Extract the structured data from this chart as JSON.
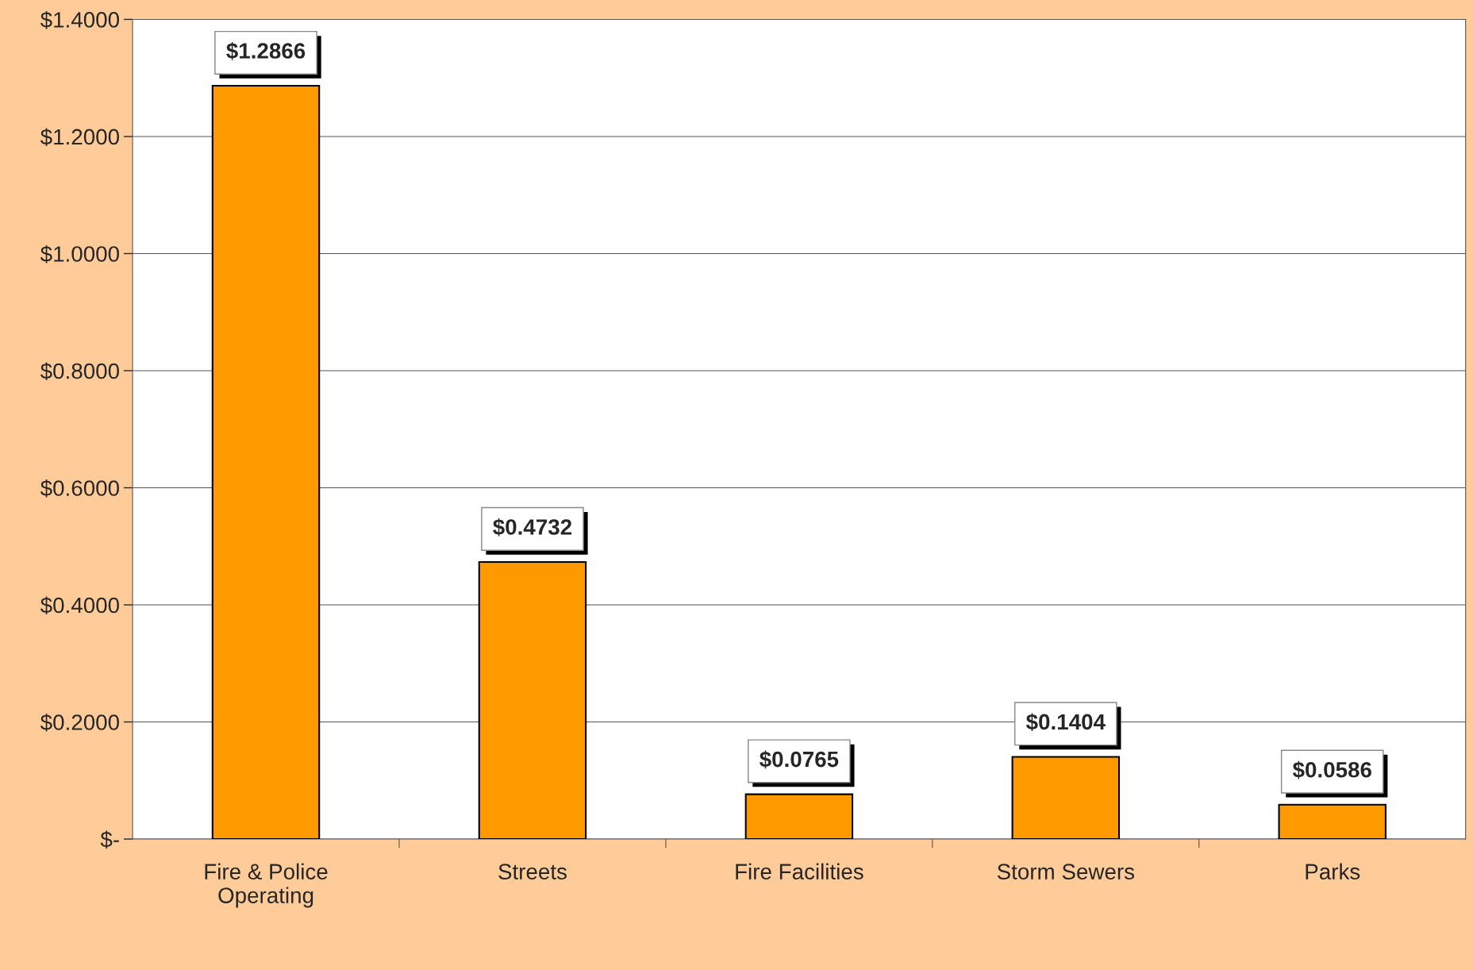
{
  "chart_data": {
    "type": "bar",
    "categories": [
      "Fire & Police\nOperating",
      "Streets",
      "Fire Facilities",
      "Storm Sewers",
      "Parks"
    ],
    "values": [
      1.2866,
      0.4732,
      0.0765,
      0.1404,
      0.0586
    ],
    "value_labels": [
      "$1.2866",
      "$0.4732",
      "$0.0765",
      "$0.1404",
      "$0.0586"
    ],
    "color": "#ff9900",
    "ylim": [
      0,
      1.4
    ],
    "yticks": [
      {
        "value": 0,
        "label": "$-"
      },
      {
        "value": 0.2,
        "label": "$0.2000"
      },
      {
        "value": 0.4,
        "label": "$0.4000"
      },
      {
        "value": 0.6,
        "label": "$0.6000"
      },
      {
        "value": 0.8,
        "label": "$0.8000"
      },
      {
        "value": 1.0,
        "label": "$1.0000"
      },
      {
        "value": 1.2,
        "label": "$1.2000"
      },
      {
        "value": 1.4,
        "label": "$1.4000"
      }
    ],
    "grid": "y",
    "legend": false
  }
}
